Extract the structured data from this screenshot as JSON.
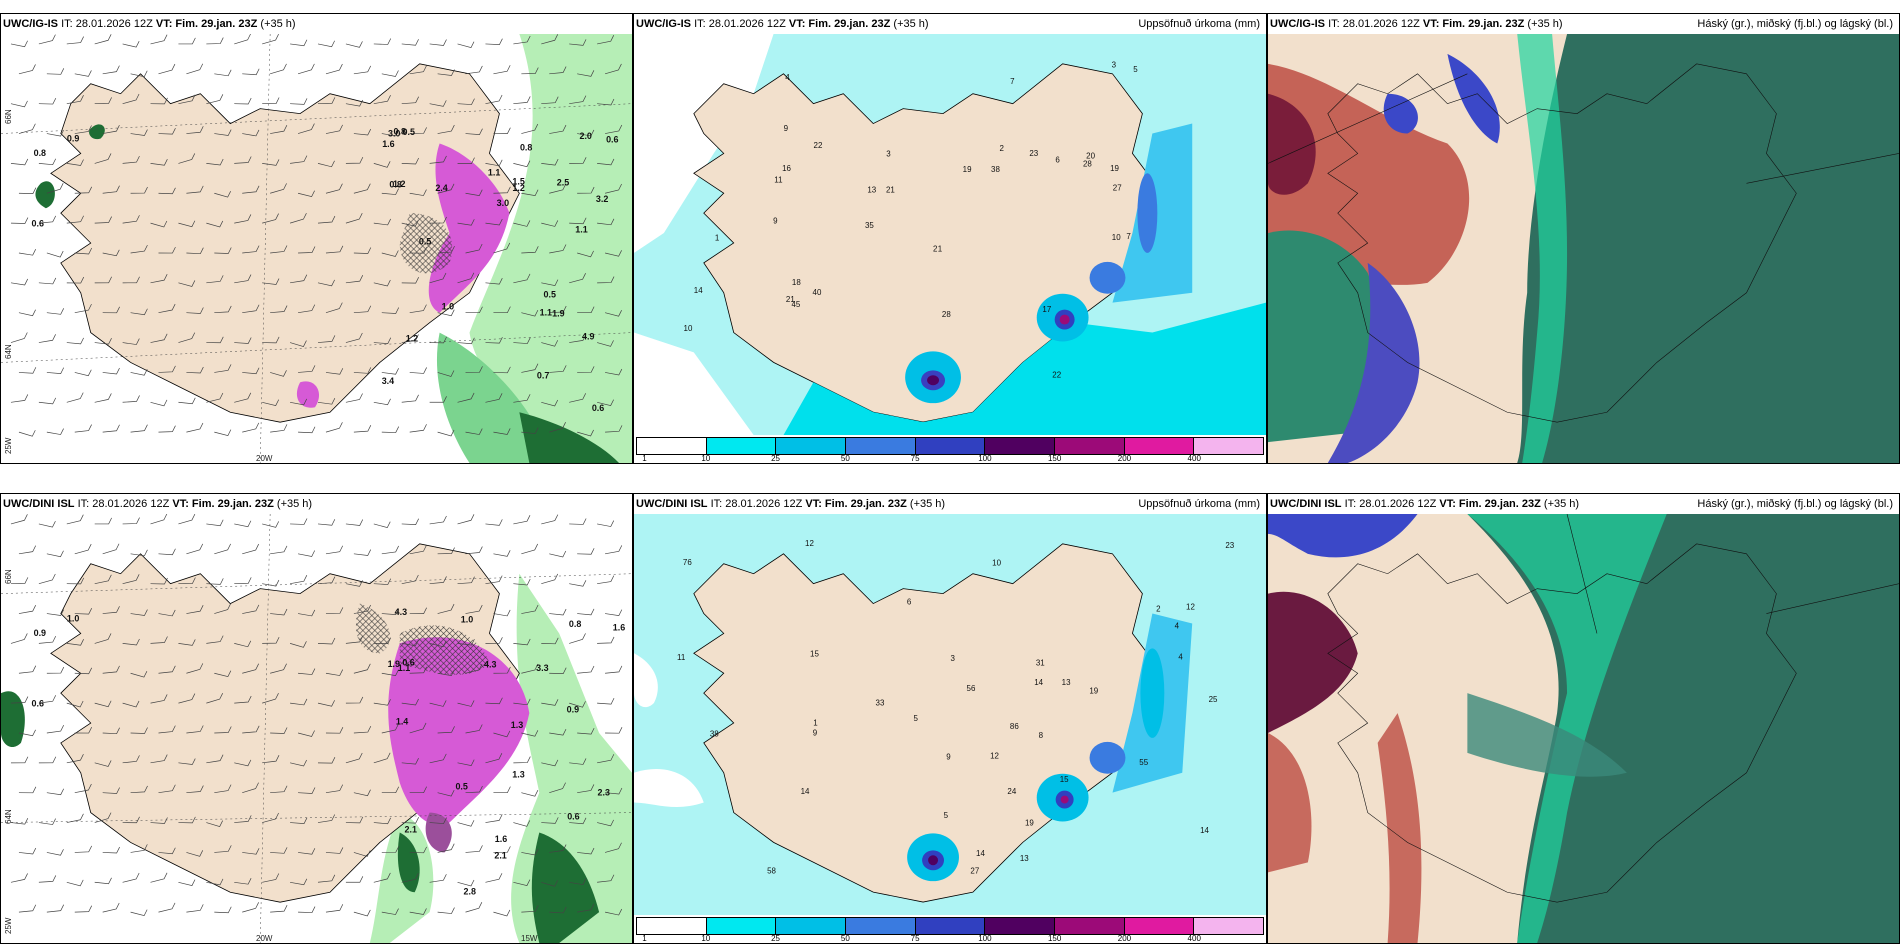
{
  "panels": [
    {
      "model": "UWC/IG-IS",
      "it": "IT: 28.01.2026 12Z",
      "vt_label": "VT:",
      "vt": "Fim. 29.jan. 23Z",
      "lead": "(+35 h)",
      "right_title": "",
      "lat_labels": [
        "66N",
        "64N",
        "25W"
      ],
      "lon_labels": [
        "20W"
      ],
      "values": [
        "0.9",
        "0.6",
        "0.8",
        "0.8",
        "0.6",
        "1.2",
        "3.0",
        "1.1",
        "3.4",
        "3.0",
        "1.9",
        "2.0",
        "3.2",
        "1.5",
        "0.7",
        "0.5",
        "0.6",
        "0.8",
        "1.0",
        "1.2",
        "1.1",
        "0.5",
        "0.5",
        "1.2",
        "1.1",
        "2.4",
        "4.9",
        "0.8",
        "1.6",
        "2.5"
      ]
    },
    {
      "model": "UWC/IG-IS",
      "it": "IT: 28.01.2026 12Z",
      "vt_label": "VT:",
      "vt": "Fim. 29.jan. 23Z",
      "lead": "(+35 h)",
      "right_title": "Uppsöfnuð úrkoma (mm)",
      "values": [
        "1",
        "2",
        "2",
        "3",
        "4",
        "3",
        "5",
        "7",
        "9",
        "13",
        "21",
        "22",
        "17",
        "14",
        "7",
        "40",
        "45",
        "20",
        "38",
        "35",
        "28",
        "19",
        "18",
        "10",
        "11",
        "22",
        "27",
        "28",
        "21",
        "23",
        "19",
        "1",
        "9",
        "10",
        "16",
        "6"
      ]
    },
    {
      "model": "UWC/IG-IS",
      "it": "IT: 28.01.2026 12Z",
      "vt_label": "VT:",
      "vt": "Fim. 29.jan. 23Z",
      "lead": "(+35 h)",
      "right_title": "Háský (gr.), miðský (fj.bl.) og lágský (bl.)"
    },
    {
      "model": "UWC/DINI ISL",
      "it": "IT: 28.01.2026 12Z",
      "vt_label": "VT:",
      "vt": "Fim. 29.jan. 23Z",
      "lead": "(+35 h)",
      "right_title": "",
      "lat_labels": [
        "66N",
        "64N",
        "25W"
      ],
      "lon_labels": [
        "20W",
        "15W"
      ],
      "values": [
        "1.0",
        "0.6",
        "0.9",
        "2.1",
        "1.3",
        "1.0",
        "1.6",
        "0.5",
        "1.9",
        "2.3",
        "1.4",
        "4.3",
        "3.3",
        "0.9",
        "1.1",
        "0.6",
        "4.3",
        "0.8",
        "0.6",
        "1.6",
        "2.1",
        "1.3",
        "2.8"
      ]
    },
    {
      "model": "UWC/DINI ISL",
      "it": "IT: 28.01.2026 12Z",
      "vt_label": "VT:",
      "vt": "Fim. 29.jan. 23Z",
      "lead": "(+35 h)",
      "right_title": "Uppsöfnuð úrkoma (mm)",
      "values": [
        "1",
        "2",
        "3",
        "5",
        "4",
        "6",
        "9",
        "12",
        "11",
        "14",
        "8",
        "15",
        "19",
        "58",
        "76",
        "56",
        "86",
        "27",
        "23",
        "33",
        "38",
        "19",
        "15",
        "14",
        "14",
        "12",
        "13",
        "14",
        "12",
        "25",
        "24",
        "31",
        "4",
        "13",
        "55",
        "5",
        "10",
        "9"
      ]
    },
    {
      "model": "UWC/DINI ISL",
      "it": "IT: 28.01.2026 12Z",
      "vt_label": "VT:",
      "vt": "Fim. 29.jan. 23Z",
      "lead": "(+35 h)",
      "right_title": "Háský (gr.), miðský (fj.bl.) og lágský (bl.)"
    }
  ],
  "precip_legend": {
    "ticks": [
      "1",
      "10",
      "25",
      "50",
      "75",
      "100",
      "150",
      "200",
      "400"
    ],
    "colors": [
      "#ffffff",
      "#00e8f0",
      "#00bfe6",
      "#3a7be0",
      "#3040c0",
      "#500060",
      "#9c0a78",
      "#e01aa0",
      "#f4b4ee"
    ]
  },
  "colors": {
    "land": "#f2e0cc",
    "sea_precip": "#aef4f4",
    "cloud_high": "#2f6f5f",
    "cloud_mid": "#20c89a",
    "cloud_low": "#3a3aa8",
    "precip_pink": "#d65ad6",
    "green_light": "#b6eeb6",
    "green_dark": "#1e6e34"
  }
}
